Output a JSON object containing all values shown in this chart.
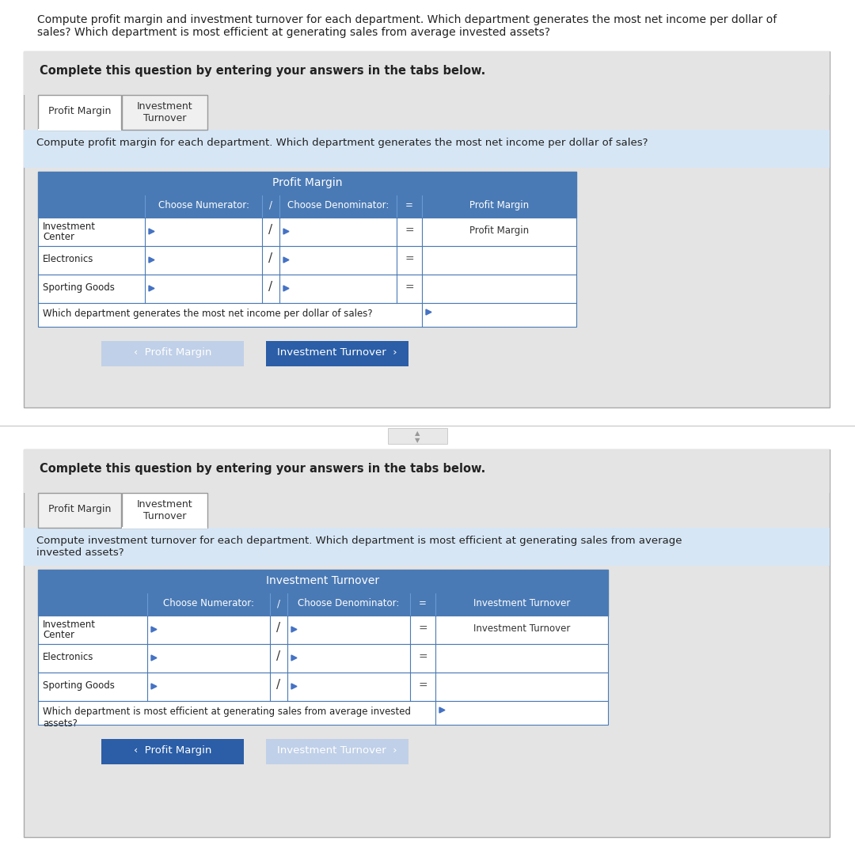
{
  "header_text": "Compute profit margin and investment turnover for each department. Which department generates the most net income per dollar of\nsales? Which department is most efficient at generating sales from average invested assets?",
  "complete_question_text": "Complete this question by entering your answers in the tabs below.",
  "tab1_label": "Profit Margin",
  "tab2_label": "Investment\nTurnover",
  "section1_instruction": "Compute profit margin for each department. Which department generates the most net income per dollar of sales?",
  "section1_table_title": "Profit Margin",
  "section1_col_headers": [
    "",
    "Choose Numerator:",
    "/",
    "Choose Denominator:",
    "=",
    "Profit Margin"
  ],
  "section1_rows": [
    "Investment\nCenter",
    "Electronics",
    "Sporting Goods"
  ],
  "section1_last_row": "Which department generates the most net income per dollar of sales?",
  "section1_row1_result": "Profit Margin",
  "btn1_left_label": "‹  Profit Margin",
  "btn1_right_label": "Investment Turnover  ›",
  "section2_instruction": "Compute investment turnover for each department. Which department is most efficient at generating sales from average\ninvested assets?",
  "section2_table_title": "Investment Turnover",
  "section2_col_headers": [
    "",
    "Choose Numerator:",
    "/",
    "Choose Denominator:",
    "=",
    "Investment Turnover"
  ],
  "section2_rows": [
    "Investment\nCenter",
    "Electronics",
    "Sporting Goods"
  ],
  "section2_last_row": "Which department is most efficient at generating sales from average invested\nassets?",
  "section2_row1_result": "Investment Turnover",
  "btn2_left_label": "‹  Profit Margin",
  "btn2_right_label": "Investment Turnover  ›",
  "bg_color": "#ffffff",
  "panel_bg": "#e4e4e4",
  "section_info_bg": "#d6e6f5",
  "table_header_bg": "#4a7ab5",
  "table_header_text": "#ffffff",
  "table_row_bg": "#ffffff",
  "table_border": "#4a7ab5",
  "btn_active_bg": "#2b5ea7",
  "btn_active_text": "#ffffff",
  "btn_inactive_bg": "#c0d0e8",
  "btn_inactive_text": "#ffffff",
  "outer_border": "#aaaaaa",
  "tab_border": "#999999",
  "text_color": "#222222"
}
